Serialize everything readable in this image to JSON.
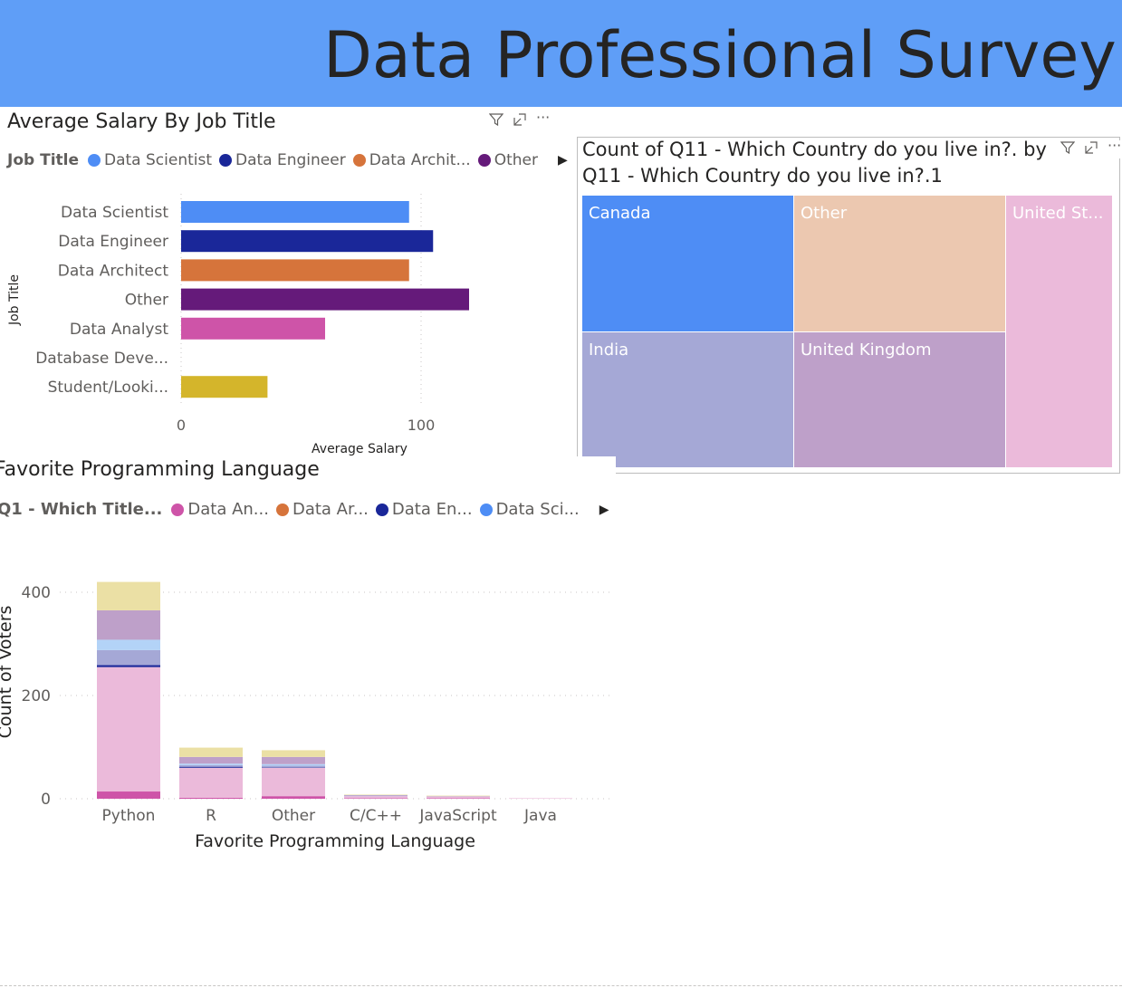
{
  "banner": {
    "title": "Data Professional Survey Visualization"
  },
  "header_icons": {
    "filter": "filter-icon",
    "focus": "focus-mode-icon",
    "more": "more-options-icon"
  },
  "salary_chart": {
    "title": "Average Salary By Job Title",
    "legend_title": "Job Title",
    "legend_items": [
      {
        "label": "Data Scientist",
        "color": "#4e8df5"
      },
      {
        "label": "Data Engineer",
        "color": "#1a2799"
      },
      {
        "label": "Data Archit...",
        "color": "#d6743b"
      },
      {
        "label": "Other",
        "color": "#651a7a"
      }
    ],
    "x_tick_0": "0",
    "x_tick_100": "100"
  },
  "country_chart": {
    "title_line1": "Count of Q11 - Which Country do you live in?. by",
    "title_line2": "Q11 - Which Country do you live in?.1",
    "cells": [
      {
        "label": "Canada",
        "color": "#4e8df5"
      },
      {
        "label": "Other",
        "color": "#ecc8b0"
      },
      {
        "label": "United St...",
        "color": "#ebbada"
      },
      {
        "label": "India",
        "color": "#a5a8d6"
      },
      {
        "label": "United Kingdom",
        "color": "#bea0c9"
      }
    ]
  },
  "lang_chart": {
    "title": "Favorite Programming Language",
    "legend_title": "Q1 - Which Title...",
    "legend_items": [
      {
        "label": "Data An...",
        "color": "#ce54a8"
      },
      {
        "label": "Data Ar...",
        "color": "#d6743b"
      },
      {
        "label": "Data En...",
        "color": "#1a2799"
      },
      {
        "label": "Data Sci...",
        "color": "#4e8df5"
      }
    ]
  },
  "chart_data": [
    {
      "type": "bar",
      "orientation": "horizontal",
      "title": "Average Salary By Job Title",
      "xlabel": "Average Salary",
      "ylabel": "Job Title",
      "categories": [
        "Data Scientist",
        "Data Engineer",
        "Data Architect",
        "Other",
        "Data Analyst",
        "Database Deve...",
        "Student/Looki..."
      ],
      "values": [
        95,
        105,
        95,
        120,
        60,
        0,
        36
      ],
      "colors": [
        "#4e8df5",
        "#1a2799",
        "#d6743b",
        "#651a7a",
        "#ce54a8",
        "#e8a33a",
        "#d4b52b"
      ],
      "xlim": [
        0,
        130
      ],
      "x_ticks": [
        0,
        100
      ],
      "grid": true
    },
    {
      "type": "heatmap",
      "subtype": "treemap",
      "title": "Count of Q11 - Which Country do you live in?. by Q11 - Which Country do you live in?.1",
      "categories": [
        "Canada",
        "Other",
        "United St...",
        "India",
        "United Kingdom"
      ]
    },
    {
      "type": "bar",
      "stacked": true,
      "title": "Favorite Programming Language",
      "xlabel": "Favorite Programming Language",
      "ylabel": "Count of Voters",
      "categories": [
        "Python",
        "R",
        "Other",
        "C/C++",
        "JavaScript",
        "Java"
      ],
      "ylim": [
        0,
        440
      ],
      "y_ticks": [
        0,
        200,
        400
      ],
      "grid": true,
      "series": [
        {
          "name": "Data An...",
          "color": "#ce54a8",
          "values": [
            14,
            2,
            5,
            1,
            1,
            0
          ]
        },
        {
          "name": "",
          "color": "#ebbada",
          "values": [
            241,
            58,
            55,
            4,
            3,
            1
          ]
        },
        {
          "name": "Data En...",
          "color": "#1a2799",
          "values": [
            4,
            2,
            1,
            0,
            0,
            0
          ]
        },
        {
          "name": "",
          "color": "#a5a8d6",
          "values": [
            29,
            3,
            3,
            1,
            0,
            0
          ]
        },
        {
          "name": "",
          "color": "#b3d3f7",
          "values": [
            20,
            3,
            3,
            0,
            0,
            0
          ]
        },
        {
          "name": "",
          "color": "#bea0c9",
          "values": [
            57,
            13,
            14,
            1,
            1,
            0
          ]
        },
        {
          "name": "",
          "color": "#ebe0a5",
          "values": [
            55,
            18,
            13,
            1,
            1,
            0
          ]
        }
      ]
    }
  ]
}
